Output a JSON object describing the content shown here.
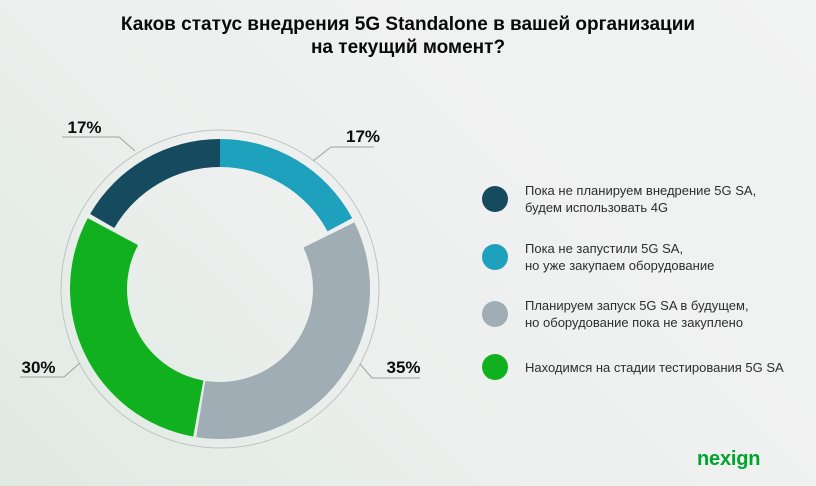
{
  "title": {
    "line1": "Каков статус внедрения 5G Standalone в вашей организации",
    "line2": "на текущий момент?"
  },
  "chart_data": {
    "type": "pie",
    "variant": "donut",
    "title": "Каков статус внедрения 5G Standalone в вашей организации на текущий момент?",
    "unit": "%",
    "legend_position": "right",
    "segments": [
      {
        "value": 17,
        "label": "17%",
        "color": "#164a5f",
        "ring": "thin",
        "legend_line1": "Пока не планируем внедрение 5G SA,",
        "legend_line2": "будем использовать 4G"
      },
      {
        "value": 17,
        "label": "17%",
        "color": "#1ea1bd",
        "ring": "thin",
        "legend_line1": "Пока не запустили 5G SA,",
        "legend_line2": "но уже закупаем оборудование"
      },
      {
        "value": 35,
        "label": "35%",
        "color": "#a0adb5",
        "ring": "wide",
        "legend_line1": "Планируем запуск 5G SA в будущем,",
        "legend_line2": "но оборудование пока не закуплено"
      },
      {
        "value": 30,
        "label": "30%",
        "color": "#11b01f",
        "ring": "wide",
        "legend_line1": "Находимся на стадии тестирования 5G SA",
        "legend_line2": ""
      }
    ]
  },
  "logo": {
    "text": "nexign",
    "color": "#00a42e"
  },
  "colors": {
    "background_top_right": "#f2f3f3",
    "background_mid": "#eef0ef",
    "background_bottom_left": "#dfeae2",
    "outline_circle": "#bdc3c1",
    "leader_line": "#9aa3a1",
    "title_text": "#0a0a0a",
    "legend_text": "#2d2d2d"
  }
}
